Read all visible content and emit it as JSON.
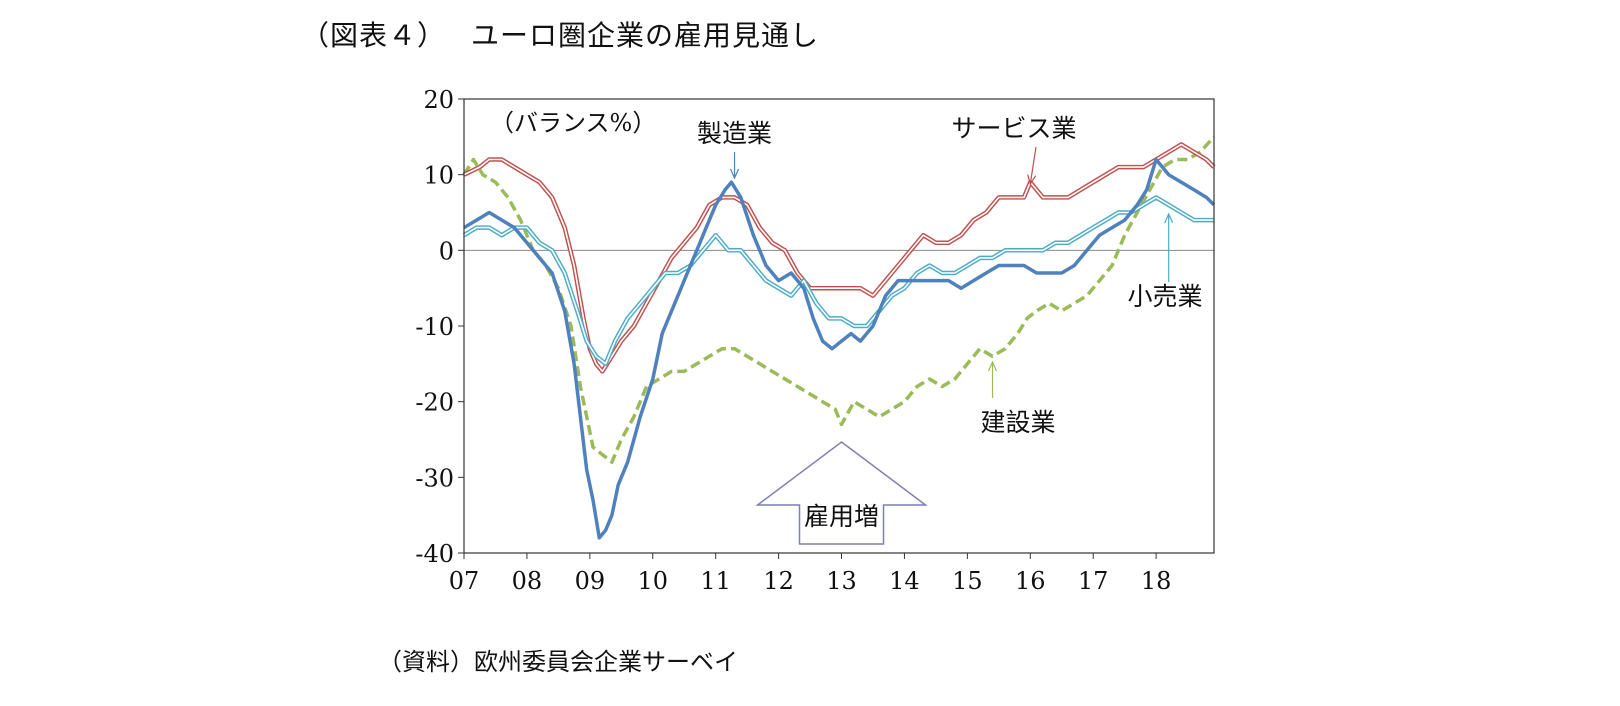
{
  "title": "（図表４）　 ユーロ圏企業の雇用見通し",
  "source": "（資料）欧州委員会企業サーベイ",
  "chart_data": {
    "type": "line",
    "unit_label": "（バランス%）",
    "ylim": [
      -40,
      20
    ],
    "yticks": [
      20,
      10,
      0,
      -10,
      -20,
      -30,
      -40
    ],
    "xlim": [
      2007.0,
      2018.92
    ],
    "xticks": [
      {
        "label": "07",
        "value": 2007
      },
      {
        "label": "08",
        "value": 2008
      },
      {
        "label": "09",
        "value": 2009
      },
      {
        "label": "10",
        "value": 2010
      },
      {
        "label": "11",
        "value": 2011
      },
      {
        "label": "12",
        "value": 2012
      },
      {
        "label": "13",
        "value": 2013
      },
      {
        "label": "14",
        "value": 2014
      },
      {
        "label": "15",
        "value": 2015
      },
      {
        "label": "16",
        "value": 2016
      },
      {
        "label": "17",
        "value": 2017
      },
      {
        "label": "18",
        "value": 2018
      }
    ],
    "grid": false,
    "zero_line": true,
    "series": [
      {
        "name": "サービス業",
        "color": "#c0504d",
        "style": "double",
        "x": [
          2007.0,
          2007.25,
          2007.4,
          2007.6,
          2007.8,
          2008.0,
          2008.2,
          2008.4,
          2008.6,
          2008.75,
          2008.9,
          2009.0,
          2009.1,
          2009.2,
          2009.35,
          2009.5,
          2009.7,
          2009.9,
          2010.1,
          2010.3,
          2010.5,
          2010.7,
          2010.9,
          2011.1,
          2011.3,
          2011.5,
          2011.7,
          2011.9,
          2012.1,
          2012.3,
          2012.5,
          2012.7,
          2012.9,
          2013.1,
          2013.3,
          2013.5,
          2013.7,
          2013.9,
          2014.1,
          2014.3,
          2014.5,
          2014.7,
          2014.9,
          2015.1,
          2015.3,
          2015.5,
          2015.7,
          2015.9,
          2016.0,
          2016.2,
          2016.4,
          2016.6,
          2016.8,
          2017.0,
          2017.2,
          2017.4,
          2017.6,
          2017.8,
          2018.0,
          2018.2,
          2018.4,
          2018.6,
          2018.8,
          2018.92
        ],
        "values": [
          10,
          11,
          12,
          12,
          11,
          10,
          9,
          7,
          3,
          -2,
          -9,
          -13,
          -15,
          -16,
          -14,
          -12,
          -10,
          -7,
          -4,
          -1,
          1,
          3,
          6,
          7,
          7,
          6,
          3,
          1,
          0,
          -3,
          -5,
          -5,
          -5,
          -5,
          -5,
          -6,
          -4,
          -2,
          0,
          2,
          1,
          1,
          2,
          4,
          5,
          7,
          7,
          7,
          9,
          7,
          7,
          7,
          8,
          9,
          10,
          11,
          11,
          11,
          12,
          13,
          14,
          13,
          12,
          11
        ]
      },
      {
        "name": "製造業",
        "color": "#4f81bd",
        "style": "thick",
        "x": [
          2007.0,
          2007.2,
          2007.4,
          2007.6,
          2007.8,
          2008.0,
          2008.2,
          2008.4,
          2008.6,
          2008.75,
          2008.85,
          2008.95,
          2009.05,
          2009.15,
          2009.25,
          2009.35,
          2009.45,
          2009.6,
          2009.8,
          2010.0,
          2010.15,
          2010.3,
          2010.5,
          2010.7,
          2010.85,
          2011.0,
          2011.15,
          2011.25,
          2011.4,
          2011.6,
          2011.8,
          2012.0,
          2012.2,
          2012.4,
          2012.55,
          2012.7,
          2012.85,
          2013.0,
          2013.15,
          2013.3,
          2013.5,
          2013.7,
          2013.9,
          2014.1,
          2014.3,
          2014.5,
          2014.7,
          2014.9,
          2015.1,
          2015.3,
          2015.5,
          2015.7,
          2015.9,
          2016.1,
          2016.3,
          2016.5,
          2016.7,
          2016.9,
          2017.1,
          2017.3,
          2017.5,
          2017.7,
          2017.85,
          2018.0,
          2018.2,
          2018.4,
          2018.6,
          2018.8,
          2018.92
        ],
        "values": [
          3,
          4,
          5,
          4,
          3,
          1,
          -1,
          -3,
          -8,
          -15,
          -22,
          -29,
          -33,
          -38,
          -37,
          -35,
          -31,
          -28,
          -22,
          -17,
          -11,
          -8,
          -4,
          0,
          3,
          6,
          8,
          9,
          7,
          2,
          -2,
          -4,
          -3,
          -5,
          -9,
          -12,
          -13,
          -12,
          -11,
          -12,
          -10,
          -6,
          -4,
          -4,
          -4,
          -4,
          -4,
          -5,
          -4,
          -3,
          -2,
          -2,
          -2,
          -3,
          -3,
          -3,
          -2,
          0,
          2,
          3,
          4,
          6,
          8,
          12,
          10,
          9,
          8,
          7,
          6
        ]
      },
      {
        "name": "小売業",
        "color": "#4bacc6",
        "style": "double",
        "x": [
          2007.0,
          2007.2,
          2007.4,
          2007.6,
          2007.8,
          2008.0,
          2008.2,
          2008.4,
          2008.6,
          2008.8,
          2008.95,
          2009.1,
          2009.25,
          2009.4,
          2009.6,
          2009.8,
          2010.0,
          2010.2,
          2010.4,
          2010.6,
          2010.8,
          2011.0,
          2011.2,
          2011.4,
          2011.6,
          2011.8,
          2012.0,
          2012.2,
          2012.4,
          2012.6,
          2012.8,
          2013.0,
          2013.2,
          2013.4,
          2013.6,
          2013.8,
          2014.0,
          2014.2,
          2014.4,
          2014.6,
          2014.8,
          2015.0,
          2015.2,
          2015.4,
          2015.6,
          2015.8,
          2016.0,
          2016.2,
          2016.4,
          2016.6,
          2016.8,
          2017.0,
          2017.2,
          2017.4,
          2017.6,
          2017.8,
          2018.0,
          2018.2,
          2018.4,
          2018.6,
          2018.8,
          2018.92
        ],
        "values": [
          2,
          3,
          3,
          2,
          3,
          3,
          1,
          0,
          -3,
          -8,
          -12,
          -14,
          -15,
          -12,
          -9,
          -7,
          -5,
          -3,
          -3,
          -2,
          0,
          2,
          0,
          0,
          -2,
          -4,
          -5,
          -6,
          -4,
          -7,
          -9,
          -9,
          -10,
          -10,
          -8,
          -6,
          -5,
          -3,
          -2,
          -3,
          -3,
          -2,
          -1,
          -1,
          0,
          0,
          0,
          0,
          1,
          1,
          2,
          3,
          4,
          5,
          5,
          6,
          7,
          6,
          5,
          4,
          4,
          4
        ]
      },
      {
        "name": "建設業",
        "color": "#9bbb59",
        "style": "dashed",
        "x": [
          2007.0,
          2007.15,
          2007.3,
          2007.5,
          2007.7,
          2007.9,
          2008.1,
          2008.3,
          2008.5,
          2008.7,
          2008.85,
          2008.95,
          2009.05,
          2009.2,
          2009.35,
          2009.5,
          2009.7,
          2009.9,
          2010.1,
          2010.3,
          2010.5,
          2010.7,
          2010.9,
          2011.1,
          2011.3,
          2011.5,
          2011.7,
          2011.9,
          2012.1,
          2012.3,
          2012.5,
          2012.7,
          2012.9,
          2013.0,
          2013.2,
          2013.4,
          2013.6,
          2013.8,
          2014.0,
          2014.2,
          2014.4,
          2014.6,
          2014.8,
          2015.0,
          2015.2,
          2015.4,
          2015.6,
          2015.8,
          2015.95,
          2016.1,
          2016.3,
          2016.5,
          2016.7,
          2016.9,
          2017.1,
          2017.3,
          2017.5,
          2017.7,
          2017.9,
          2018.1,
          2018.3,
          2018.5,
          2018.7,
          2018.92
        ],
        "values": [
          10,
          12,
          10,
          9,
          7,
          4,
          0,
          -2,
          -5,
          -10,
          -18,
          -22,
          -26,
          -27,
          -28,
          -25,
          -22,
          -18,
          -17,
          -16,
          -16,
          -15,
          -14,
          -13,
          -13,
          -14,
          -15,
          -16,
          -17,
          -18,
          -19,
          -20,
          -21,
          -23,
          -20,
          -21,
          -22,
          -21,
          -20,
          -18,
          -17,
          -18,
          -17,
          -15,
          -13,
          -14,
          -13,
          -11,
          -9,
          -8,
          -7,
          -8,
          -7,
          -6,
          -4,
          -2,
          2,
          5,
          8,
          11,
          12,
          12,
          13,
          15
        ]
      }
    ],
    "annotations": [
      {
        "text": "製造業",
        "x": 2011.3,
        "y": 16
      },
      {
        "text": "サービス業",
        "x": 2016.0,
        "y": 16
      },
      {
        "text": "小売業",
        "x": 2018.2,
        "y": -6
      },
      {
        "text": "建設業",
        "x": 2015.7,
        "y": -22
      },
      {
        "text": "雇用増",
        "x": 2013.0,
        "y": -35
      }
    ]
  }
}
